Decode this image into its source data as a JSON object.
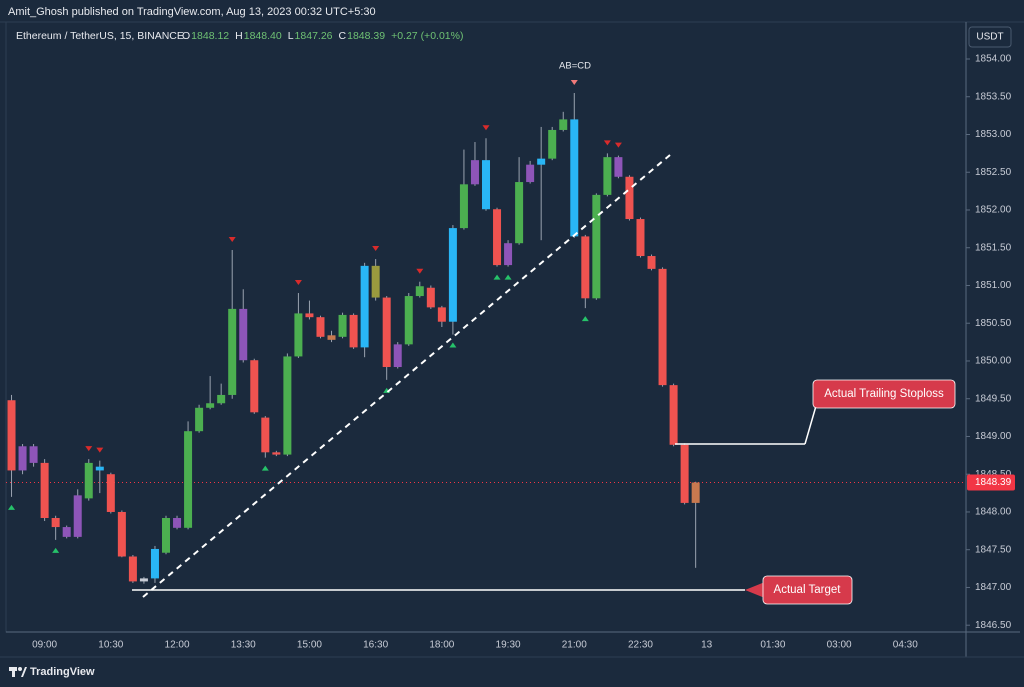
{
  "header": {
    "publisher": "Amit_Ghosh published on TradingView.com, Aug 13, 2023 00:32 UTC+5:30"
  },
  "chart_data": {
    "type": "candlestick",
    "title": "Ethereum / TetherUS, 15, BINANCE",
    "ohlc_legend": [
      {
        "key": "O",
        "value": "1848.12"
      },
      {
        "key": "H",
        "value": "1848.40"
      },
      {
        "key": "L",
        "value": "1847.26"
      },
      {
        "key": "C",
        "value": "1848.39"
      }
    ],
    "change": "+0.27 (+0.01%)",
    "currency": "USDT",
    "categories": [
      null,
      null,
      null,
      "09:00",
      null,
      null,
      null,
      null,
      null,
      "10:30",
      null,
      null,
      null,
      null,
      null,
      "12:00",
      null,
      null,
      null,
      null,
      null,
      "13:30",
      null,
      null,
      null,
      null,
      null,
      "15:00",
      null,
      null,
      null,
      null,
      null,
      "16:30",
      null,
      null,
      null,
      null,
      null,
      "18:00",
      null,
      null,
      null,
      null,
      null,
      "19:30",
      null,
      null,
      null,
      null,
      null,
      "21:00",
      null,
      null,
      null,
      null,
      null,
      "22:30",
      null,
      null,
      null,
      null,
      null,
      "13",
      null,
      null,
      null,
      null,
      null,
      "01:30",
      null,
      null,
      null,
      null,
      null,
      "03:00",
      null,
      null,
      null,
      null,
      null,
      "04:30",
      null,
      null,
      null,
      null,
      null
    ],
    "open": [
      1849.48,
      1848.55,
      1848.87,
      1848.65,
      1847.92,
      1847.8,
      1847.67,
      1848.18,
      1848.6,
      1848.5,
      1848.0,
      1847.41,
      1847.08,
      1847.12,
      1847.46,
      1847.92,
      1847.79,
      1849.07,
      1849.38,
      1849.44,
      1849.55,
      1850.69,
      1850.01,
      1849.25,
      1848.79,
      1848.76,
      1850.06,
      1850.63,
      1850.58,
      1850.34,
      1850.32,
      1850.61,
      1850.18,
      1851.26,
      1850.84,
      1849.92,
      1850.22,
      1850.86,
      1850.97,
      1850.71,
      1850.52,
      1851.76,
      1852.34,
      1852.66,
      1852.01,
      1851.27,
      1851.56,
      1852.37,
      1852.6,
      1852.68,
      1853.06,
      1853.2,
      1851.65,
      1850.83,
      1852.2,
      1852.7,
      1852.44,
      1851.88,
      1851.39,
      1851.22,
      1849.68,
      1848.89,
      1848.12,
      null,
      null,
      null,
      null,
      null,
      null,
      null,
      null,
      null,
      null,
      null,
      null,
      null,
      null,
      null,
      null,
      null,
      null,
      null,
      null,
      null,
      null,
      null,
      null
    ],
    "high": [
      1849.55,
      1848.9,
      1848.9,
      1848.7,
      1847.95,
      1847.82,
      1848.3,
      1848.7,
      1848.68,
      1848.52,
      1848.02,
      1847.43,
      1847.14,
      1847.55,
      1847.95,
      1847.95,
      1849.2,
      1849.42,
      1849.8,
      1849.7,
      1851.47,
      1850.95,
      1850.03,
      1849.27,
      1848.81,
      1850.1,
      1850.9,
      1850.8,
      1850.6,
      1850.4,
      1850.64,
      1850.63,
      1851.3,
      1851.35,
      1850.86,
      1850.25,
      1850.9,
      1851.05,
      1851.0,
      1850.73,
      1851.8,
      1852.8,
      1852.9,
      1852.95,
      1852.03,
      1851.6,
      1852.7,
      1852.65,
      1853.1,
      1853.1,
      1853.3,
      1853.55,
      1851.67,
      1852.22,
      1852.75,
      1852.72,
      1852.46,
      1851.9,
      1851.41,
      1851.24,
      1849.7,
      1848.91,
      1848.4,
      null,
      null,
      null,
      null,
      null,
      null,
      null,
      null,
      null,
      null,
      null,
      null,
      null,
      null,
      null,
      null,
      null,
      null,
      null,
      null,
      null,
      null,
      null,
      null
    ],
    "low": [
      1848.2,
      1848.5,
      1848.6,
      1847.88,
      1847.63,
      1847.65,
      1847.65,
      1848.15,
      1848.25,
      1847.98,
      1847.4,
      1847.06,
      1847.05,
      1847.06,
      1847.44,
      1847.77,
      1847.77,
      1849.05,
      1849.36,
      1849.42,
      1849.5,
      1849.98,
      1849.3,
      1848.72,
      1848.74,
      1848.74,
      1850.04,
      1850.55,
      1850.3,
      1850.25,
      1850.3,
      1850.16,
      1850.05,
      1850.8,
      1849.75,
      1849.9,
      1850.2,
      1850.84,
      1850.69,
      1850.45,
      1850.35,
      1851.74,
      1852.32,
      1851.99,
      1851.25,
      1851.25,
      1851.54,
      1852.35,
      1851.6,
      1852.66,
      1853.04,
      1851.63,
      1850.7,
      1850.81,
      1852.18,
      1852.42,
      1851.86,
      1851.37,
      1851.2,
      1849.66,
      1848.87,
      1848.1,
      1847.26,
      null,
      null,
      null,
      null,
      null,
      null,
      null,
      null,
      null,
      null,
      null,
      null,
      null,
      null,
      null,
      null,
      null,
      null,
      null,
      null,
      null,
      null,
      null,
      null
    ],
    "close": [
      1848.55,
      1848.87,
      1848.65,
      1847.92,
      1847.8,
      1847.67,
      1848.22,
      1848.65,
      1848.55,
      1848.0,
      1847.41,
      1847.08,
      1847.12,
      1847.51,
      1847.92,
      1847.79,
      1849.07,
      1849.38,
      1849.44,
      1849.55,
      1850.69,
      1850.01,
      1849.32,
      1848.79,
      1848.76,
      1850.06,
      1850.63,
      1850.58,
      1850.32,
      1850.28,
      1850.61,
      1850.18,
      1851.26,
      1850.84,
      1849.92,
      1850.22,
      1850.86,
      1850.99,
      1850.71,
      1850.52,
      1851.76,
      1852.34,
      1852.66,
      1852.01,
      1851.27,
      1851.56,
      1852.37,
      1852.6,
      1852.68,
      1853.06,
      1853.2,
      1851.65,
      1850.83,
      1852.2,
      1852.7,
      1852.44,
      1851.88,
      1851.39,
      1851.22,
      1849.68,
      1848.89,
      1848.12,
      1848.39,
      null,
      null,
      null,
      null,
      null,
      null,
      null,
      null,
      null,
      null,
      null,
      null,
      null,
      null,
      null,
      null,
      null,
      null,
      null,
      null,
      null,
      null,
      null,
      null
    ],
    "colors": [
      "#ef5350",
      "#8e55b8",
      "#8e55b8",
      "#ef5350",
      "#ef5350",
      "#8e55b8",
      "#8e55b8",
      "#4caf50",
      "#29b6f6",
      "#ef5350",
      "#ef5350",
      "#ef5350",
      "#c8ccd6",
      "#29b6f6",
      "#4caf50",
      "#8e55b8",
      "#4caf50",
      "#4caf50",
      "#4caf50",
      "#4caf50",
      "#4caf50",
      "#8e55b8",
      "#ef5350",
      "#ef5350",
      "#ef5350",
      "#4caf50",
      "#4caf50",
      "#ef5350",
      "#ef5350",
      "#c8794f",
      "#4caf50",
      "#ef5350",
      "#29b6f6",
      "#9a9a3e",
      "#ef5350",
      "#8e55b8",
      "#4caf50",
      "#4caf50",
      "#ef5350",
      "#ef5350",
      "#29b6f6",
      "#4caf50",
      "#8e55b8",
      "#29b6f6",
      "#ef5350",
      "#8e55b8",
      "#4caf50",
      "#8e55b8",
      "#29b6f6",
      "#4caf50",
      "#4caf50",
      "#29b6f6",
      "#ef5350",
      "#4caf50",
      "#4caf50",
      "#8e55b8",
      "#ef5350",
      "#ef5350",
      "#ef5350",
      "#ef5350",
      "#ef5350",
      "#ef5350",
      "#c8794f",
      null,
      null,
      null,
      null,
      null,
      null,
      null,
      null,
      null,
      null,
      null,
      null,
      null,
      null,
      null,
      null,
      null,
      null,
      null,
      null,
      null,
      null,
      null,
      null
    ],
    "ylim": [
      1846.41,
      1854.49
    ],
    "yticks": [
      {
        "value": 1846.5,
        "label": "1846.50"
      },
      {
        "value": 1847,
        "label": "1847.00"
      },
      {
        "value": 1847.5,
        "label": "1847.50"
      },
      {
        "value": 1848,
        "label": "1848.00"
      },
      {
        "value": 1848.5,
        "label": "1848.50"
      },
      {
        "value": 1849,
        "label": "1849.00"
      },
      {
        "value": 1849.5,
        "label": "1849.50"
      },
      {
        "value": 1850,
        "label": "1850.00"
      },
      {
        "value": 1850.5,
        "label": "1850.50"
      },
      {
        "value": 1851,
        "label": "1851.00"
      },
      {
        "value": 1851.5,
        "label": "1851.50"
      },
      {
        "value": 1852,
        "label": "1852.00"
      },
      {
        "value": 1852.5,
        "label": "1852.50"
      },
      {
        "value": 1853,
        "label": "1853.00"
      },
      {
        "value": 1853.5,
        "label": "1853.50"
      },
      {
        "value": 1854,
        "label": "1854.00"
      }
    ],
    "grid": false,
    "last_price": 1848.39,
    "annotations": [
      "AB=CD",
      "Actual Trailing Stoploss",
      "Actual Target"
    ]
  },
  "footer": {
    "brand": "TradingView"
  }
}
